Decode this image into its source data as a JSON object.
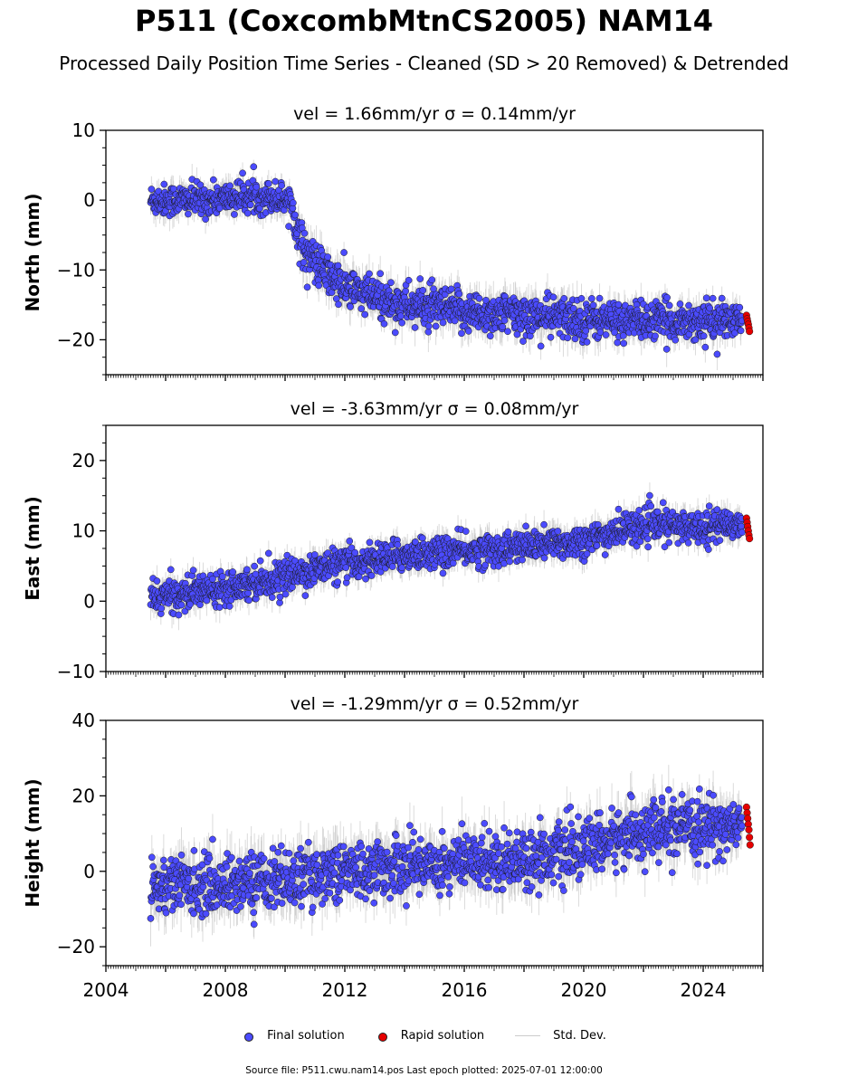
{
  "figure": {
    "title": "P511 (CoxcombMtnCS2005) NAM14",
    "subtitle": "Processed Daily Position Time Series - Cleaned (SD > 20 Removed) & Detrended"
  },
  "legend": {
    "final_label": "Final solution",
    "rapid_label": "Rapid solution",
    "std_label": "Std. Dev."
  },
  "footer": "Source file: P511.cwu.nam14.pos  Last epoch plotted: 2025-07-01 12:00:00",
  "colors": {
    "final": "#4b4bff",
    "rapid": "#e60000",
    "std": "#bdbdbd"
  },
  "chart_data": [
    {
      "type": "scatter",
      "panel": "north",
      "title": "vel = 1.66mm/yr   σ = 0.14mm/yr",
      "ylabel": "North (mm)",
      "xlabel": "",
      "xlim": [
        2004,
        2026
      ],
      "ylim": [
        -25,
        10
      ],
      "yticks": [
        -20,
        -10,
        0,
        10
      ],
      "ytick_labels": [
        "−20",
        "−10",
        "0",
        "10"
      ],
      "xticks": [
        2004,
        2008,
        2012,
        2016,
        2020,
        2024
      ],
      "xtick_labels": [],
      "series": [
        {
          "name": "Final solution",
          "x": [
            2005.5,
            2006.5,
            2007.5,
            2008.5,
            2009.5,
            2010.2,
            2010.5,
            2011.0,
            2011.5,
            2012.0,
            2013.0,
            2014.0,
            2015.0,
            2016.0,
            2017.0,
            2018.0,
            2019.0,
            2020.0,
            2021.0,
            2022.0,
            2023.0,
            2024.0,
            2025.3
          ],
          "y": [
            0,
            0,
            0,
            0.5,
            0.5,
            0,
            -6,
            -9,
            -11,
            -12.5,
            -14,
            -15,
            -15.5,
            -16,
            -16.3,
            -16.5,
            -16.8,
            -17,
            -17.2,
            -17.3,
            -17.3,
            -17.3,
            -17.3
          ],
          "spread": [
            1.5,
            1.5,
            1.5,
            1.5,
            1.5,
            1.5,
            2,
            2,
            2,
            2,
            2,
            2,
            2,
            2,
            2,
            2,
            2,
            2,
            1.8,
            1.8,
            1.8,
            1.8,
            1.5
          ]
        },
        {
          "name": "Rapid solution",
          "x": [
            2025.45,
            2025.47,
            2025.49,
            2025.51,
            2025.53,
            2025.55
          ],
          "y": [
            -16.5,
            -17.0,
            -17.4,
            -17.8,
            -18.3,
            -18.8
          ]
        }
      ]
    },
    {
      "type": "scatter",
      "panel": "east",
      "title": "vel = -3.63mm/yr   σ = 0.08mm/yr",
      "ylabel": "East (mm)",
      "xlabel": "",
      "xlim": [
        2004,
        2026
      ],
      "ylim": [
        -10,
        25
      ],
      "yticks": [
        -10,
        0,
        10,
        20
      ],
      "ytick_labels": [
        "−10",
        "0",
        "10",
        "20"
      ],
      "xticks": [
        2004,
        2008,
        2012,
        2016,
        2020,
        2024
      ],
      "xtick_labels": [],
      "series": [
        {
          "name": "Final solution",
          "x": [
            2005.5,
            2006.5,
            2007.5,
            2008.5,
            2009.5,
            2010.5,
            2011.5,
            2012.5,
            2013.5,
            2014.5,
            2015.5,
            2016.5,
            2017.5,
            2018.5,
            2019.5,
            2020.5,
            2021.5,
            2022.5,
            2023.5,
            2024.5,
            2025.3
          ],
          "y": [
            0.5,
            1,
            1.8,
            2.5,
            3,
            4,
            5,
            5.5,
            6.3,
            6.8,
            7,
            7.2,
            7.5,
            8,
            8.3,
            9,
            10.5,
            10.8,
            10.5,
            10.8,
            11
          ],
          "spread": [
            1.5,
            1.5,
            1.5,
            1.5,
            1.5,
            1.5,
            1.5,
            1.5,
            1.5,
            1.5,
            1.5,
            1.5,
            1.5,
            1.5,
            1.5,
            1.5,
            1.5,
            1.5,
            1.5,
            1.5,
            1.3
          ]
        },
        {
          "name": "Rapid solution",
          "x": [
            2025.45,
            2025.47,
            2025.49,
            2025.51,
            2025.53,
            2025.55
          ],
          "y": [
            11.8,
            11.2,
            10.6,
            10.0,
            9.4,
            8.9
          ]
        }
      ]
    },
    {
      "type": "scatter",
      "panel": "height",
      "title": "vel = -1.29mm/yr   σ = 0.52mm/yr",
      "ylabel": "Height (mm)",
      "xlabel": "",
      "xlim": [
        2004,
        2026
      ],
      "ylim": [
        -25,
        40
      ],
      "yticks": [
        -20,
        0,
        20,
        40
      ],
      "ytick_labels": [
        "−20",
        "0",
        "20",
        "40"
      ],
      "xticks": [
        2004,
        2008,
        2012,
        2016,
        2020,
        2024
      ],
      "xtick_labels": [
        "2004",
        "2008",
        "2012",
        "2016",
        "2020",
        "2024"
      ],
      "series": [
        {
          "name": "Final solution",
          "x": [
            2005.5,
            2006.5,
            2007.5,
            2008.5,
            2009.5,
            2010.5,
            2011.5,
            2012.5,
            2013.5,
            2014.5,
            2015.5,
            2016.5,
            2017.5,
            2018.5,
            2019.5,
            2020.5,
            2021.5,
            2022.5,
            2023.5,
            2024.5,
            2025.3
          ],
          "y": [
            -4,
            -3,
            -4,
            -3,
            -2,
            -2,
            0,
            0,
            1,
            2,
            2,
            3,
            3,
            4,
            5,
            7,
            10,
            11,
            11,
            12,
            12
          ],
          "spread": [
            5,
            5,
            5,
            5,
            5,
            5,
            5,
            5,
            5,
            5,
            5,
            5,
            5,
            5,
            5,
            5,
            5,
            5,
            5,
            5,
            4
          ]
        },
        {
          "name": "Rapid solution",
          "x": [
            2025.45,
            2025.47,
            2025.49,
            2025.51,
            2025.53,
            2025.55,
            2025.57
          ],
          "y": [
            17,
            15.5,
            14,
            12.5,
            11,
            9,
            7
          ]
        }
      ]
    }
  ]
}
